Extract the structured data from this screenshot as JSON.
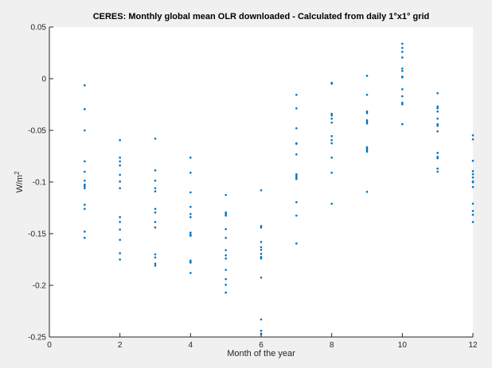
{
  "chart_data": {
    "type": "scatter",
    "title": "CERES: Monthly global mean OLR downloaded - Calculated from daily 1°x1° grid",
    "xlabel": "Month of the year",
    "ylabel": "W/m",
    "ylabel_sup": "2",
    "xlim": [
      0,
      12
    ],
    "ylim": [
      -0.25,
      0.05
    ],
    "xticks": [
      "0",
      "2",
      "4",
      "6",
      "8",
      "10",
      "12"
    ],
    "yticks": [
      "-0.25",
      "-0.2",
      "-0.15",
      "-0.1",
      "-0.05",
      "0",
      "0.05"
    ],
    "grid": false,
    "marker_color": "#0072bd",
    "months": [
      {
        "x": 1,
        "y": [
          -0.0064,
          -0.0295,
          -0.05,
          -0.08,
          -0.09,
          -0.0987,
          -0.1025,
          -0.104,
          -0.106,
          -0.122,
          -0.126,
          -0.148,
          -0.154
        ]
      },
      {
        "x": 2,
        "y": [
          -0.0595,
          -0.0764,
          -0.08,
          -0.084,
          -0.093,
          -0.0995,
          -0.106,
          -0.134,
          -0.1387,
          -0.146,
          -0.156,
          -0.169,
          -0.175
        ]
      },
      {
        "x": 3,
        "y": [
          -0.058,
          -0.0887,
          -0.0987,
          -0.106,
          -0.109,
          -0.126,
          -0.1295,
          -0.1387,
          -0.144,
          -0.17,
          -0.173,
          -0.179,
          -0.181
        ]
      },
      {
        "x": 4,
        "y": [
          -0.0764,
          -0.091,
          -0.11,
          -0.124,
          -0.131,
          -0.134,
          -0.149,
          -0.151,
          -0.152,
          -0.176,
          -0.1775,
          -0.178,
          -0.188
        ]
      },
      {
        "x": 5,
        "y": [
          -0.1125,
          -0.1295,
          -0.131,
          -0.1325,
          -0.1456,
          -0.154,
          -0.166,
          -0.171,
          -0.174,
          -0.185,
          -0.194,
          -0.1995,
          -0.207
        ]
      },
      {
        "x": 6,
        "y": [
          -0.108,
          -0.1425,
          -0.144,
          -0.158,
          -0.163,
          -0.1656,
          -0.1695,
          -0.1725,
          -0.174,
          -0.1925,
          -0.233,
          -0.244,
          -0.247
        ]
      },
      {
        "x": 7,
        "y": [
          -0.0156,
          -0.0287,
          -0.048,
          -0.0625,
          -0.063,
          -0.0733,
          -0.0925,
          -0.094,
          -0.0956,
          -0.097,
          -0.1195,
          -0.1325,
          -0.1595
        ]
      },
      {
        "x": 8,
        "y": [
          -0.004,
          -0.0048,
          -0.034,
          -0.0356,
          -0.0387,
          -0.0425,
          -0.0556,
          -0.0595,
          -0.0625,
          -0.0764,
          -0.091,
          -0.121
        ]
      },
      {
        "x": 9,
        "y": [
          0.0028,
          -0.0156,
          -0.0318,
          -0.0333,
          -0.0402,
          -0.0418,
          -0.0433,
          -0.0664,
          -0.068,
          -0.069,
          -0.0706,
          -0.1095
        ]
      },
      {
        "x": 10,
        "y": [
          0.0338,
          0.0298,
          0.026,
          0.0205,
          0.0098,
          0.0075,
          0.002,
          0.0013,
          -0.0102,
          -0.017,
          -0.0233,
          -0.0248,
          -0.044
        ]
      },
      {
        "x": 11,
        "y": [
          -0.014,
          -0.027,
          -0.0287,
          -0.0318,
          -0.0387,
          -0.044,
          -0.0456,
          -0.051,
          -0.0718,
          -0.0756,
          -0.077,
          -0.087,
          -0.09
        ]
      },
      {
        "x": 12,
        "y": [
          -0.0548,
          -0.0587,
          -0.0795,
          -0.0895,
          -0.0925,
          -0.0956,
          -0.0995,
          -0.1002,
          -0.1048,
          -0.121,
          -0.128,
          -0.1317,
          -0.1387
        ]
      }
    ]
  }
}
